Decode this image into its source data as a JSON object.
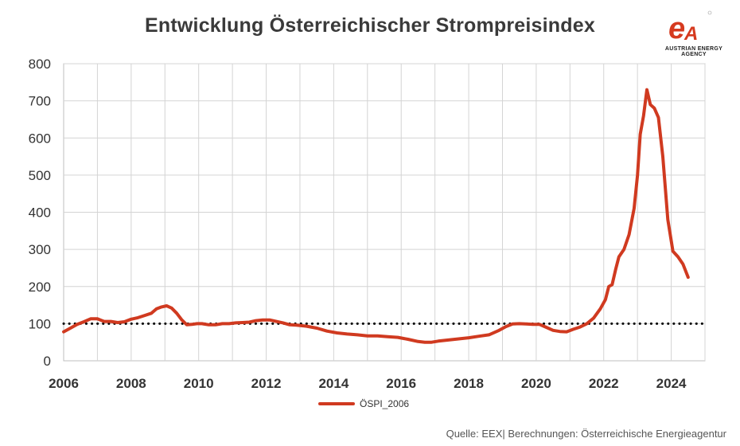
{
  "chart_data": {
    "type": "line",
    "title": "Entwicklung Österreichischer Strompreisindex",
    "xlim": [
      2006,
      2025
    ],
    "ylim": [
      0,
      800
    ],
    "x_ticks": [
      2006,
      2008,
      2010,
      2012,
      2014,
      2016,
      2018,
      2020,
      2022,
      2024
    ],
    "y_ticks": [
      0,
      100,
      200,
      300,
      400,
      500,
      600,
      700,
      800
    ],
    "grid": true,
    "legend_position": "bottom-center",
    "reference_line": {
      "y": 100,
      "style": "dotted",
      "color": "#000000"
    },
    "series": [
      {
        "name": "ÖSPI_2006",
        "color": "#d03a20",
        "x": [
          2006.0,
          2006.2,
          2006.4,
          2006.6,
          2006.8,
          2007.0,
          2007.2,
          2007.4,
          2007.6,
          2007.8,
          2008.0,
          2008.2,
          2008.4,
          2008.6,
          2008.75,
          2008.9,
          2009.05,
          2009.2,
          2009.35,
          2009.5,
          2009.65,
          2009.8,
          2009.95,
          2010.1,
          2010.3,
          2010.5,
          2010.7,
          2010.9,
          2011.1,
          2011.3,
          2011.5,
          2011.7,
          2011.9,
          2012.1,
          2012.3,
          2012.5,
          2012.7,
          2012.9,
          2013.2,
          2013.5,
          2013.8,
          2014.1,
          2014.4,
          2014.7,
          2015.0,
          2015.3,
          2015.6,
          2015.9,
          2016.2,
          2016.5,
          2016.7,
          2016.9,
          2017.1,
          2017.4,
          2017.7,
          2018.0,
          2018.3,
          2018.6,
          2018.9,
          2019.1,
          2019.3,
          2019.5,
          2019.7,
          2019.9,
          2020.1,
          2020.3,
          2020.5,
          2020.7,
          2020.9,
          2021.1,
          2021.3,
          2021.5,
          2021.7,
          2021.9,
          2022.05,
          2022.15,
          2022.25,
          2022.35,
          2022.45,
          2022.6,
          2022.75,
          2022.9,
          2023.0,
          2023.08,
          2023.18,
          2023.28,
          2023.38,
          2023.5,
          2023.62,
          2023.75,
          2023.9,
          2024.05,
          2024.2,
          2024.35,
          2024.5
        ],
        "values": [
          78,
          88,
          98,
          105,
          113,
          113,
          106,
          106,
          103,
          105,
          112,
          116,
          122,
          128,
          140,
          145,
          148,
          142,
          128,
          110,
          97,
          98,
          100,
          100,
          97,
          97,
          100,
          100,
          102,
          103,
          104,
          108,
          110,
          110,
          106,
          102,
          97,
          96,
          93,
          88,
          80,
          75,
          72,
          70,
          67,
          67,
          65,
          63,
          58,
          52,
          50,
          50,
          53,
          56,
          59,
          62,
          66,
          70,
          82,
          92,
          99,
          100,
          99,
          98,
          98,
          90,
          82,
          79,
          78,
          85,
          91,
          100,
          115,
          140,
          165,
          200,
          205,
          245,
          280,
          300,
          340,
          410,
          500,
          610,
          660,
          730,
          690,
          680,
          655,
          550,
          380,
          295,
          280,
          260,
          225
        ]
      }
    ]
  },
  "logo": {
    "caption": "AUSTRIAN ENERGY AGENCY"
  },
  "footer": {
    "source": "Quelle: EEX| Berechnungen: Österreichische Energieagentur"
  }
}
